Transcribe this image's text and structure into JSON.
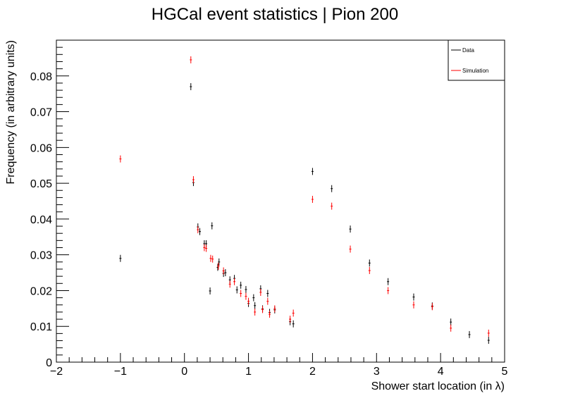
{
  "chart_data": {
    "type": "scatter",
    "title": "HGCal event statistics | Pion 200",
    "xlabel": "Shower start location (in    λ)",
    "ylabel": "Frequency (in arbitrary units)",
    "xlim": [
      -2,
      5
    ],
    "ylim": [
      0,
      0.09
    ],
    "x_ticks": [
      -2,
      -1,
      0,
      1,
      2,
      3,
      4,
      5
    ],
    "x_tick_labels": [
      "−2",
      "−1",
      "0",
      "1",
      "2",
      "3",
      "4",
      "5"
    ],
    "y_ticks": [
      0,
      0.01,
      0.02,
      0.03,
      0.04,
      0.05,
      0.06,
      0.07,
      0.08
    ],
    "y_tick_labels": [
      "0",
      "0.01",
      "0.02",
      "0.03",
      "0.04",
      "0.05",
      "0.06",
      "0.07",
      "0.08"
    ],
    "grid": false,
    "legend": {
      "position": "top-right",
      "entries": [
        {
          "label": "Data",
          "color": "#000000"
        },
        {
          "label": "Simulation",
          "color": "#ff0000"
        }
      ]
    },
    "series": [
      {
        "name": "Data",
        "color": "#000000",
        "points": [
          {
            "x": -1.0,
            "y": 0.029
          },
          {
            "x": 0.1,
            "y": 0.077
          },
          {
            "x": 0.14,
            "y": 0.0502
          },
          {
            "x": 0.21,
            "y": 0.0378
          },
          {
            "x": 0.24,
            "y": 0.0365
          },
          {
            "x": 0.31,
            "y": 0.0331
          },
          {
            "x": 0.34,
            "y": 0.0331
          },
          {
            "x": 0.4,
            "y": 0.0199
          },
          {
            "x": 0.43,
            "y": 0.0381
          },
          {
            "x": 0.52,
            "y": 0.0265
          },
          {
            "x": 0.54,
            "y": 0.028
          },
          {
            "x": 0.61,
            "y": 0.0248
          },
          {
            "x": 0.64,
            "y": 0.025
          },
          {
            "x": 0.71,
            "y": 0.023
          },
          {
            "x": 0.78,
            "y": 0.0234
          },
          {
            "x": 0.82,
            "y": 0.0202
          },
          {
            "x": 0.88,
            "y": 0.0215
          },
          {
            "x": 0.96,
            "y": 0.0203
          },
          {
            "x": 1.0,
            "y": 0.0164
          },
          {
            "x": 1.08,
            "y": 0.018
          },
          {
            "x": 1.1,
            "y": 0.0158
          },
          {
            "x": 1.19,
            "y": 0.0205
          },
          {
            "x": 1.22,
            "y": 0.0149
          },
          {
            "x": 1.3,
            "y": 0.0192
          },
          {
            "x": 1.33,
            "y": 0.0139
          },
          {
            "x": 1.41,
            "y": 0.0146
          },
          {
            "x": 1.65,
            "y": 0.0113
          },
          {
            "x": 1.7,
            "y": 0.0107
          },
          {
            "x": 2.0,
            "y": 0.0533
          },
          {
            "x": 2.3,
            "y": 0.0485
          },
          {
            "x": 2.59,
            "y": 0.0372
          },
          {
            "x": 2.89,
            "y": 0.0277
          },
          {
            "x": 3.18,
            "y": 0.0225
          },
          {
            "x": 3.58,
            "y": 0.0182
          },
          {
            "x": 3.87,
            "y": 0.0157
          },
          {
            "x": 4.16,
            "y": 0.0112
          },
          {
            "x": 4.45,
            "y": 0.0077
          },
          {
            "x": 4.75,
            "y": 0.0061
          }
        ]
      },
      {
        "name": "Simulation",
        "color": "#ff0000",
        "points": [
          {
            "x": -1.0,
            "y": 0.0568
          },
          {
            "x": 0.1,
            "y": 0.0845
          },
          {
            "x": 0.14,
            "y": 0.051
          },
          {
            "x": 0.21,
            "y": 0.037
          },
          {
            "x": 0.31,
            "y": 0.032
          },
          {
            "x": 0.34,
            "y": 0.0318
          },
          {
            "x": 0.41,
            "y": 0.029
          },
          {
            "x": 0.44,
            "y": 0.0288
          },
          {
            "x": 0.53,
            "y": 0.0268
          },
          {
            "x": 0.61,
            "y": 0.0255
          },
          {
            "x": 0.71,
            "y": 0.0218
          },
          {
            "x": 0.78,
            "y": 0.0225
          },
          {
            "x": 0.88,
            "y": 0.0192
          },
          {
            "x": 0.96,
            "y": 0.0184
          },
          {
            "x": 1.0,
            "y": 0.017
          },
          {
            "x": 1.1,
            "y": 0.014
          },
          {
            "x": 1.19,
            "y": 0.0195
          },
          {
            "x": 1.22,
            "y": 0.0147
          },
          {
            "x": 1.3,
            "y": 0.017
          },
          {
            "x": 1.33,
            "y": 0.0134
          },
          {
            "x": 1.41,
            "y": 0.0149
          },
          {
            "x": 1.65,
            "y": 0.012
          },
          {
            "x": 1.7,
            "y": 0.0137
          },
          {
            "x": 2.0,
            "y": 0.0455
          },
          {
            "x": 2.3,
            "y": 0.0436
          },
          {
            "x": 2.59,
            "y": 0.0316
          },
          {
            "x": 2.89,
            "y": 0.0256
          },
          {
            "x": 3.18,
            "y": 0.02
          },
          {
            "x": 3.58,
            "y": 0.016
          },
          {
            "x": 3.87,
            "y": 0.0155
          },
          {
            "x": 4.16,
            "y": 0.0095
          },
          {
            "x": 4.75,
            "y": 0.0081
          }
        ]
      }
    ]
  }
}
